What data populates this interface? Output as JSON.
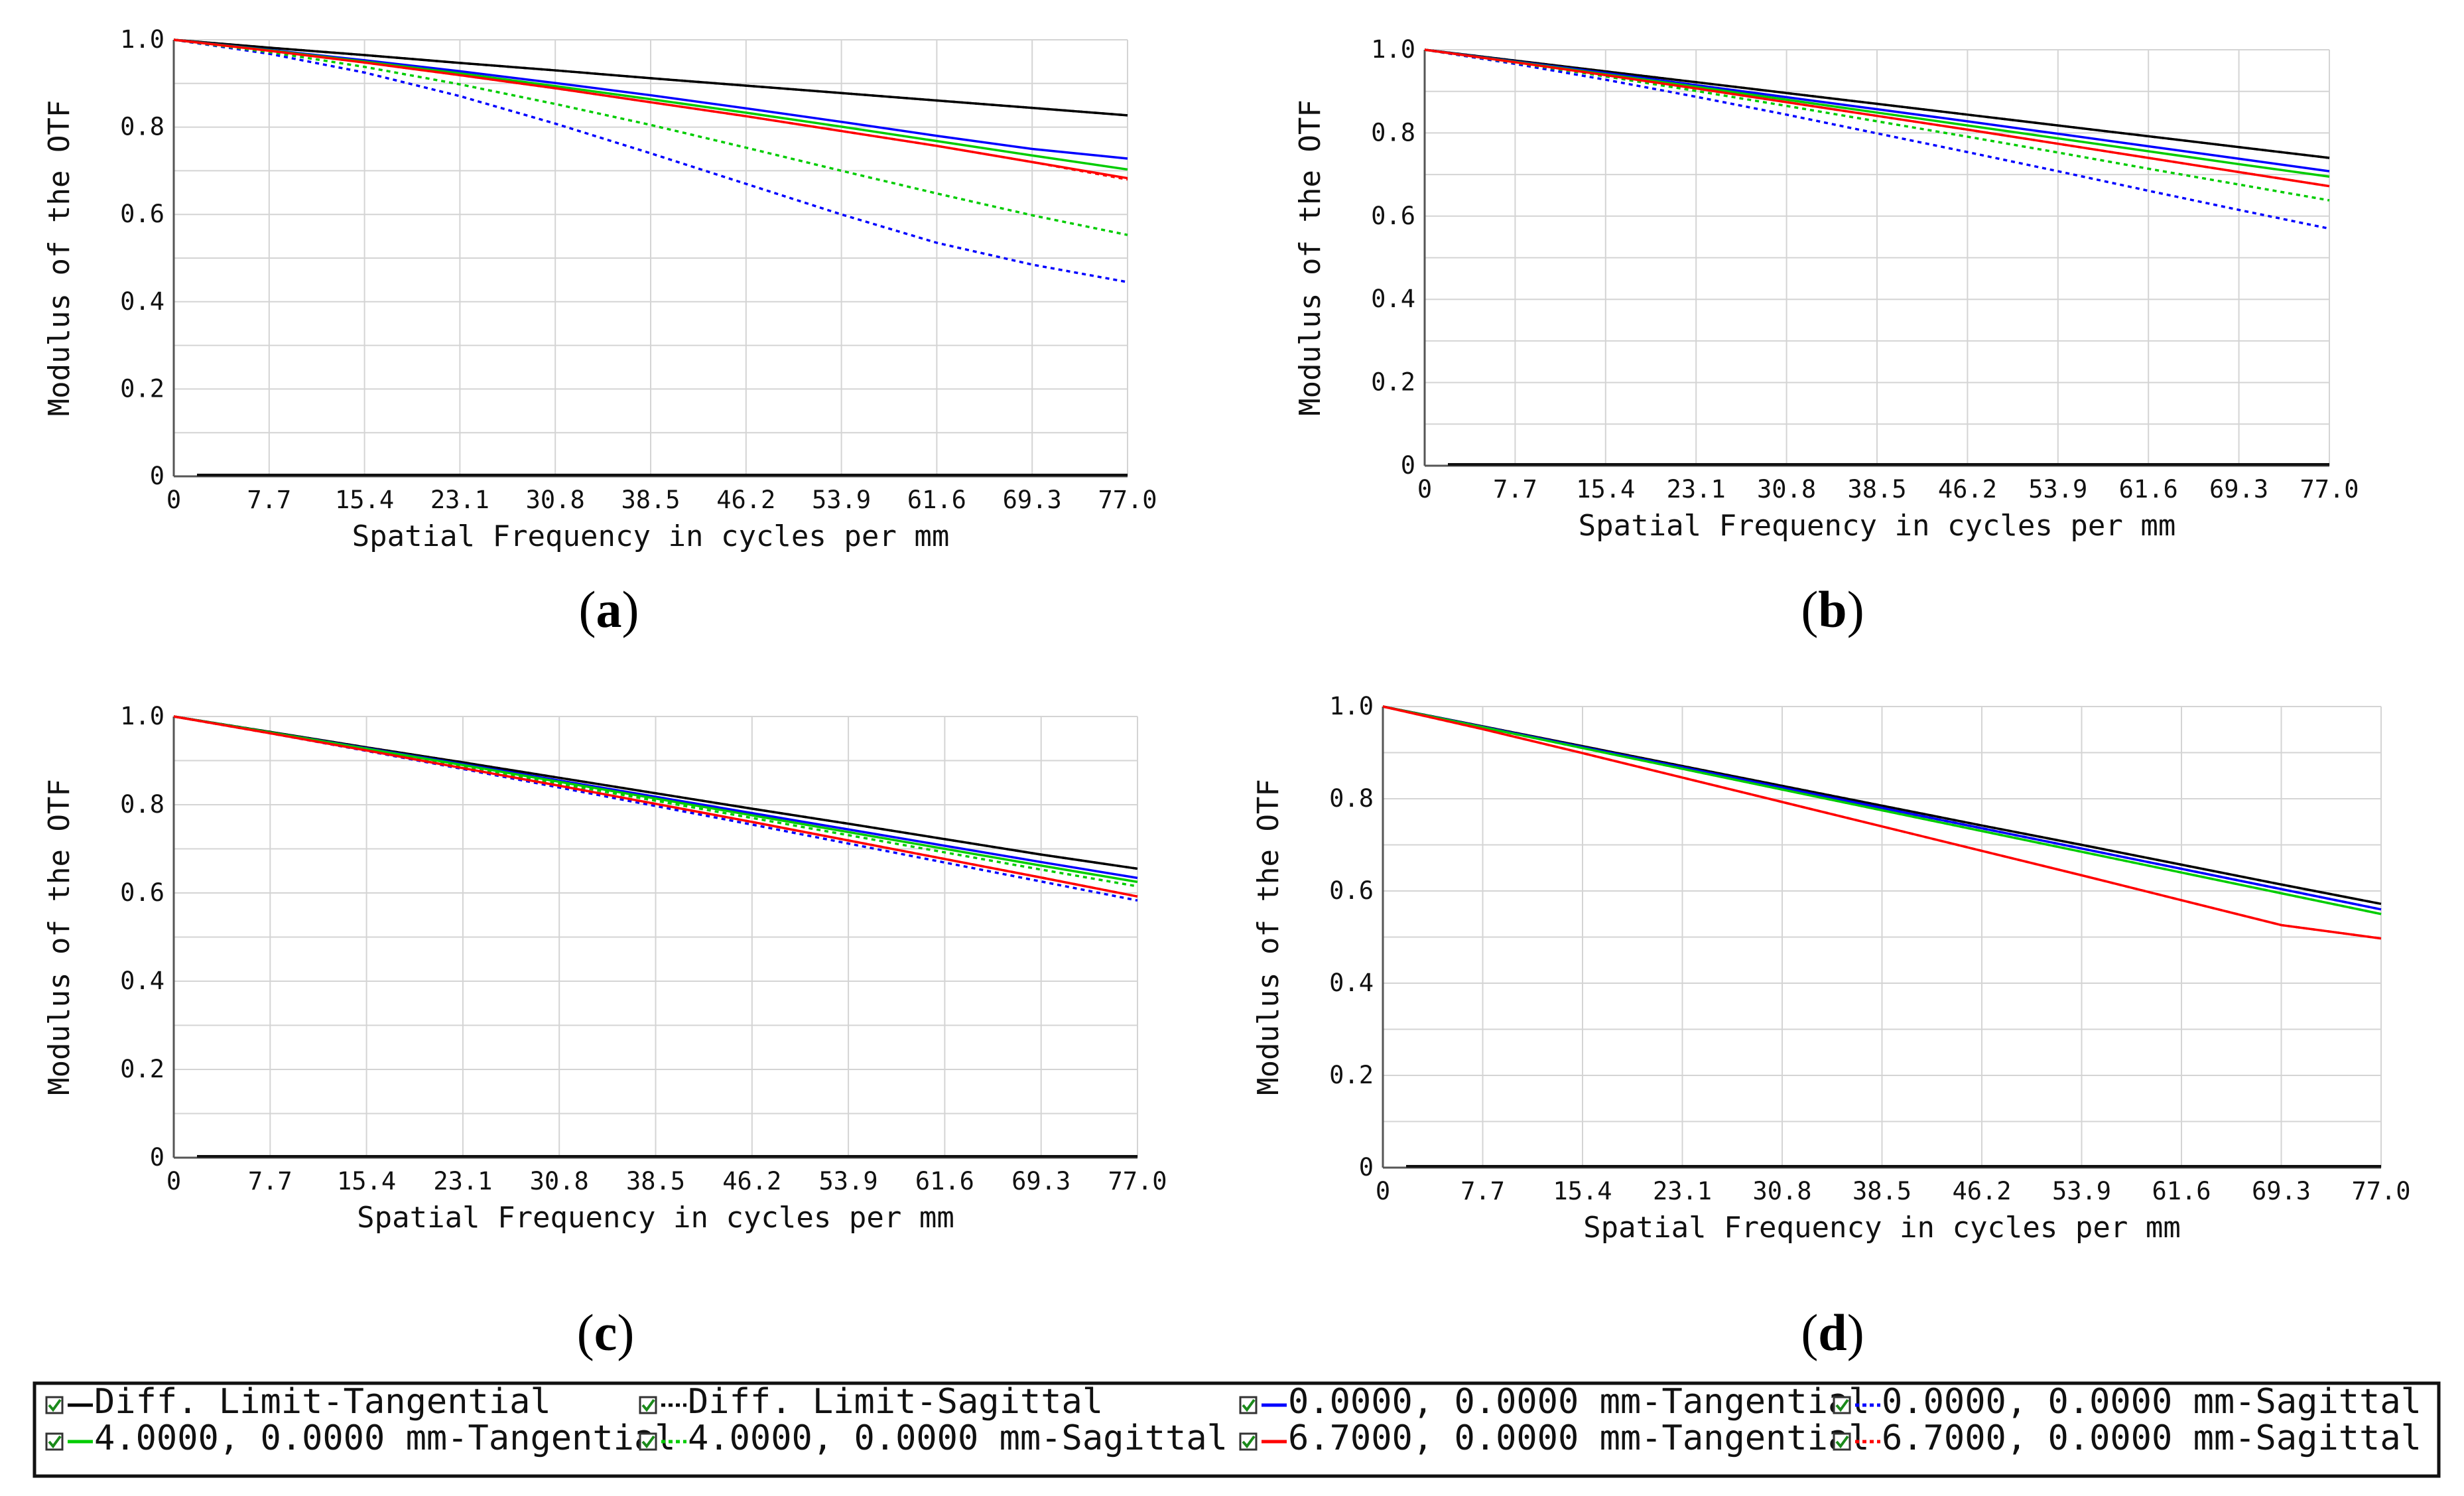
{
  "figure": {
    "panel_labels": [
      "a",
      "b",
      "c",
      "d"
    ],
    "legend": [
      {
        "label": "Diff. Limit-Tangential",
        "color": "#000000",
        "dash": "solid"
      },
      {
        "label": "Diff. Limit-Sagittal",
        "color": "#000000",
        "dash": "dotted"
      },
      {
        "label": "0.0000, 0.0000 mm-Tangential",
        "color": "#0000ff",
        "dash": "solid"
      },
      {
        "label": "0.0000, 0.0000 mm-Sagittal",
        "color": "#0000ff",
        "dash": "dotted"
      },
      {
        "label": "4.0000, 0.0000 mm-Tangential",
        "color": "#00cc00",
        "dash": "solid"
      },
      {
        "label": "4.0000, 0.0000 mm-Sagittal",
        "color": "#00cc00",
        "dash": "dotted"
      },
      {
        "label": "6.7000, 0.0000 mm-Tangential",
        "color": "#ff0000",
        "dash": "solid"
      },
      {
        "label": "6.7000, 0.0000 mm-Sagittal",
        "color": "#ff0000",
        "dash": "dotted"
      }
    ]
  },
  "chart_data": [
    {
      "type": "line",
      "panel": "a",
      "xlabel": "Spatial Frequency in cycles per mm",
      "ylabel": "Modulus of the OTF",
      "xlim": [
        0,
        77
      ],
      "ylim": [
        0,
        1
      ],
      "x_ticks": [
        "0",
        "7.7",
        "15.4",
        "23.1",
        "30.8",
        "38.5",
        "46.2",
        "53.9",
        "61.6",
        "69.3",
        "77.0"
      ],
      "y_ticks": [
        "0",
        "0.2",
        "0.4",
        "0.6",
        "0.8",
        "1.0"
      ],
      "grid": true,
      "x": [
        0,
        7.7,
        15.4,
        23.1,
        30.8,
        38.5,
        46.2,
        53.9,
        61.6,
        69.3,
        77.0
      ],
      "series": [
        {
          "name": "Diff. Limit-Tangential",
          "color": "#000000",
          "dash": "solid",
          "values": [
            1.0,
            0.982,
            0.965,
            0.947,
            0.93,
            0.912,
            0.895,
            0.878,
            0.861,
            0.844,
            0.827
          ]
        },
        {
          "name": "Diff. Limit-Sagittal",
          "color": "#000000",
          "dash": "dotted",
          "values": [
            1.0,
            0.982,
            0.965,
            0.947,
            0.93,
            0.912,
            0.895,
            0.878,
            0.861,
            0.844,
            0.827
          ]
        },
        {
          "name": "0.0000, 0.0000 mm-Tangential",
          "color": "#0000ff",
          "dash": "solid",
          "values": [
            1.0,
            0.977,
            0.953,
            0.928,
            0.901,
            0.873,
            0.843,
            0.812,
            0.78,
            0.75,
            0.728
          ]
        },
        {
          "name": "0.0000, 0.0000 mm-Sagittal",
          "color": "#0000ff",
          "dash": "dotted",
          "values": [
            1.0,
            0.968,
            0.925,
            0.871,
            0.808,
            0.74,
            0.67,
            0.6,
            0.535,
            0.485,
            0.445
          ]
        },
        {
          "name": "4.0000, 0.0000 mm-Tangential",
          "color": "#00cc00",
          "dash": "solid",
          "values": [
            1.0,
            0.976,
            0.95,
            0.923,
            0.894,
            0.864,
            0.833,
            0.801,
            0.768,
            0.735,
            0.703
          ]
        },
        {
          "name": "4.0000, 0.0000 mm-Sagittal",
          "color": "#00cc00",
          "dash": "dotted",
          "values": [
            1.0,
            0.972,
            0.938,
            0.898,
            0.853,
            0.805,
            0.753,
            0.7,
            0.648,
            0.598,
            0.553
          ]
        },
        {
          "name": "6.7000, 0.0000 mm-Tangential",
          "color": "#ff0000",
          "dash": "solid",
          "values": [
            1.0,
            0.975,
            0.948,
            0.919,
            0.889,
            0.857,
            0.825,
            0.791,
            0.757,
            0.72,
            0.683
          ]
        },
        {
          "name": "6.7000, 0.0000 mm-Sagittal",
          "color": "#ff0000",
          "dash": "dotted",
          "values": [
            1.0,
            0.975,
            0.948,
            0.919,
            0.889,
            0.857,
            0.825,
            0.791,
            0.757,
            0.72,
            0.68
          ]
        }
      ]
    },
    {
      "type": "line",
      "panel": "b",
      "xlabel": "Spatial Frequency in cycles per mm",
      "ylabel": "Modulus of the OTF",
      "xlim": [
        0,
        77
      ],
      "ylim": [
        0,
        1
      ],
      "x_ticks": [
        "0",
        "7.7",
        "15.4",
        "23.1",
        "30.8",
        "38.5",
        "46.2",
        "53.9",
        "61.6",
        "69.3",
        "77.0"
      ],
      "y_ticks": [
        "0",
        "0.2",
        "0.4",
        "0.6",
        "0.8",
        "1.0"
      ],
      "grid": true,
      "x": [
        0,
        7.7,
        15.4,
        23.1,
        30.8,
        38.5,
        46.2,
        53.9,
        61.6,
        69.3,
        77.0
      ],
      "series": [
        {
          "name": "Diff. Limit-Tangential",
          "color": "#000000",
          "dash": "solid",
          "values": [
            1.0,
            0.974,
            0.948,
            0.922,
            0.896,
            0.87,
            0.844,
            0.818,
            0.792,
            0.766,
            0.74
          ]
        },
        {
          "name": "Diff. Limit-Sagittal",
          "color": "#000000",
          "dash": "dotted",
          "values": [
            1.0,
            0.974,
            0.948,
            0.922,
            0.896,
            0.87,
            0.844,
            0.818,
            0.792,
            0.766,
            0.74
          ]
        },
        {
          "name": "0.0000, 0.0000 mm-Tangential",
          "color": "#0000ff",
          "dash": "solid",
          "values": [
            1.0,
            0.972,
            0.944,
            0.915,
            0.886,
            0.857,
            0.828,
            0.798,
            0.768,
            0.738,
            0.708
          ]
        },
        {
          "name": "0.0000, 0.0000 mm-Sagittal",
          "color": "#0000ff",
          "dash": "dotted",
          "values": [
            1.0,
            0.966,
            0.928,
            0.887,
            0.844,
            0.799,
            0.754,
            0.708,
            0.661,
            0.615,
            0.57
          ]
        },
        {
          "name": "4.0000, 0.0000 mm-Tangential",
          "color": "#00cc00",
          "dash": "solid",
          "values": [
            1.0,
            0.971,
            0.941,
            0.911,
            0.88,
            0.849,
            0.818,
            0.787,
            0.756,
            0.725,
            0.695
          ]
        },
        {
          "name": "4.0000, 0.0000 mm-Sagittal",
          "color": "#00cc00",
          "dash": "dotted",
          "values": [
            1.0,
            0.969,
            0.936,
            0.901,
            0.865,
            0.828,
            0.791,
            0.753,
            0.714,
            0.676,
            0.638
          ]
        },
        {
          "name": "6.7000, 0.0000 mm-Tangential",
          "color": "#ff0000",
          "dash": "solid",
          "values": [
            1.0,
            0.97,
            0.939,
            0.907,
            0.874,
            0.841,
            0.808,
            0.774,
            0.74,
            0.706,
            0.672
          ]
        },
        {
          "name": "6.7000, 0.0000 mm-Sagittal",
          "color": "#ff0000",
          "dash": "dotted",
          "values": [
            1.0,
            0.97,
            0.939,
            0.907,
            0.874,
            0.841,
            0.808,
            0.774,
            0.74,
            0.706,
            0.672
          ]
        }
      ]
    },
    {
      "type": "line",
      "panel": "c",
      "xlabel": "Spatial Frequency in cycles per mm",
      "ylabel": "Modulus of the OTF",
      "xlim": [
        0,
        77
      ],
      "ylim": [
        0,
        1
      ],
      "x_ticks": [
        "0",
        "7.7",
        "15.4",
        "23.1",
        "30.8",
        "38.5",
        "46.2",
        "53.9",
        "61.6",
        "69.3",
        "77.0"
      ],
      "y_ticks": [
        "0",
        "0.2",
        "0.4",
        "0.6",
        "0.8",
        "1.0"
      ],
      "grid": true,
      "x": [
        0,
        7.7,
        15.4,
        23.1,
        30.8,
        38.5,
        46.2,
        53.9,
        61.6,
        69.3,
        77.0
      ],
      "series": [
        {
          "name": "Diff. Limit-Tangential",
          "color": "#000000",
          "dash": "solid",
          "values": [
            1.0,
            0.965,
            0.93,
            0.896,
            0.861,
            0.826,
            0.791,
            0.757,
            0.722,
            0.687,
            0.655
          ]
        },
        {
          "name": "Diff. Limit-Sagittal",
          "color": "#000000",
          "dash": "dotted",
          "values": [
            1.0,
            0.965,
            0.93,
            0.896,
            0.861,
            0.826,
            0.791,
            0.757,
            0.722,
            0.687,
            0.655
          ]
        },
        {
          "name": "0.0000, 0.0000 mm-Tangential",
          "color": "#0000ff",
          "dash": "solid",
          "values": [
            1.0,
            0.964,
            0.928,
            0.892,
            0.855,
            0.818,
            0.781,
            0.744,
            0.707,
            0.67,
            0.634
          ]
        },
        {
          "name": "0.0000, 0.0000 mm-Sagittal",
          "color": "#0000ff",
          "dash": "dotted",
          "values": [
            1.0,
            0.962,
            0.922,
            0.881,
            0.839,
            0.797,
            0.755,
            0.712,
            0.669,
            0.626,
            0.583
          ]
        },
        {
          "name": "4.0000, 0.0000 mm-Tangential",
          "color": "#00cc00",
          "dash": "solid",
          "values": [
            1.0,
            0.964,
            0.927,
            0.89,
            0.852,
            0.814,
            0.776,
            0.738,
            0.7,
            0.662,
            0.625
          ]
        },
        {
          "name": "4.0000, 0.0000 mm-Sagittal",
          "color": "#00cc00",
          "dash": "dotted",
          "values": [
            1.0,
            0.963,
            0.925,
            0.887,
            0.848,
            0.809,
            0.77,
            0.731,
            0.692,
            0.653,
            0.615
          ]
        },
        {
          "name": "6.7000, 0.0000 mm-Tangential",
          "color": "#ff0000",
          "dash": "solid",
          "values": [
            1.0,
            0.962,
            0.923,
            0.883,
            0.843,
            0.802,
            0.761,
            0.719,
            0.677,
            0.635,
            0.592
          ]
        },
        {
          "name": "6.7000, 0.0000 mm-Sagittal",
          "color": "#ff0000",
          "dash": "dotted",
          "values": [
            1.0,
            0.962,
            0.923,
            0.883,
            0.843,
            0.802,
            0.761,
            0.719,
            0.677,
            0.635,
            0.592
          ]
        }
      ]
    },
    {
      "type": "line",
      "panel": "d",
      "xlabel": "Spatial Frequency in cycles per mm",
      "ylabel": "Modulus of the OTF",
      "xlim": [
        0,
        77
      ],
      "ylim": [
        0,
        1
      ],
      "x_ticks": [
        "0",
        "7.7",
        "15.4",
        "23.1",
        "30.8",
        "38.5",
        "46.2",
        "53.9",
        "61.6",
        "69.3",
        "77.0"
      ],
      "y_ticks": [
        "0",
        "0.2",
        "0.4",
        "0.6",
        "0.8",
        "1.0"
      ],
      "grid": true,
      "x": [
        0,
        7.7,
        15.4,
        23.1,
        30.8,
        38.5,
        46.2,
        53.9,
        61.6,
        69.3,
        77.0
      ],
      "series": [
        {
          "name": "Diff. Limit-Tangential",
          "color": "#000000",
          "dash": "solid",
          "values": [
            1.0,
            0.957,
            0.914,
            0.871,
            0.828,
            0.785,
            0.742,
            0.7,
            0.657,
            0.614,
            0.572
          ]
        },
        {
          "name": "Diff. Limit-Sagittal",
          "color": "#000000",
          "dash": "dotted",
          "values": [
            1.0,
            0.957,
            0.914,
            0.871,
            0.828,
            0.785,
            0.742,
            0.7,
            0.657,
            0.614,
            0.572
          ]
        },
        {
          "name": "0.0000, 0.0000 mm-Tangential",
          "color": "#0000ff",
          "dash": "solid",
          "values": [
            1.0,
            0.956,
            0.912,
            0.868,
            0.824,
            0.78,
            0.736,
            0.692,
            0.648,
            0.604,
            0.56
          ]
        },
        {
          "name": "0.0000, 0.0000 mm-Sagittal",
          "color": "#0000ff",
          "dash": "dotted",
          "values": [
            1.0,
            0.956,
            0.912,
            0.868,
            0.824,
            0.78,
            0.736,
            0.692,
            0.648,
            0.604,
            0.56
          ]
        },
        {
          "name": "4.0000, 0.0000 mm-Tangential",
          "color": "#00cc00",
          "dash": "solid",
          "values": [
            1.0,
            0.955,
            0.91,
            0.865,
            0.82,
            0.775,
            0.73,
            0.685,
            0.64,
            0.595,
            0.55
          ]
        },
        {
          "name": "4.0000, 0.0000 mm-Sagittal",
          "color": "#00cc00",
          "dash": "dotted",
          "values": [
            1.0,
            0.955,
            0.91,
            0.865,
            0.82,
            0.775,
            0.73,
            0.685,
            0.64,
            0.595,
            0.55
          ]
        },
        {
          "name": "6.7000, 0.0000 mm-Tangential",
          "color": "#ff0000",
          "dash": "solid",
          "values": [
            1.0,
            0.951,
            0.899,
            0.846,
            0.793,
            0.74,
            0.687,
            0.634,
            0.58,
            0.526,
            0.497
          ]
        },
        {
          "name": "6.7000, 0.0000 mm-Sagittal",
          "color": "#ff0000",
          "dash": "dotted",
          "values": [
            1.0,
            0.951,
            0.899,
            0.846,
            0.793,
            0.74,
            0.687,
            0.634,
            0.58,
            0.526,
            0.497
          ]
        }
      ]
    }
  ]
}
